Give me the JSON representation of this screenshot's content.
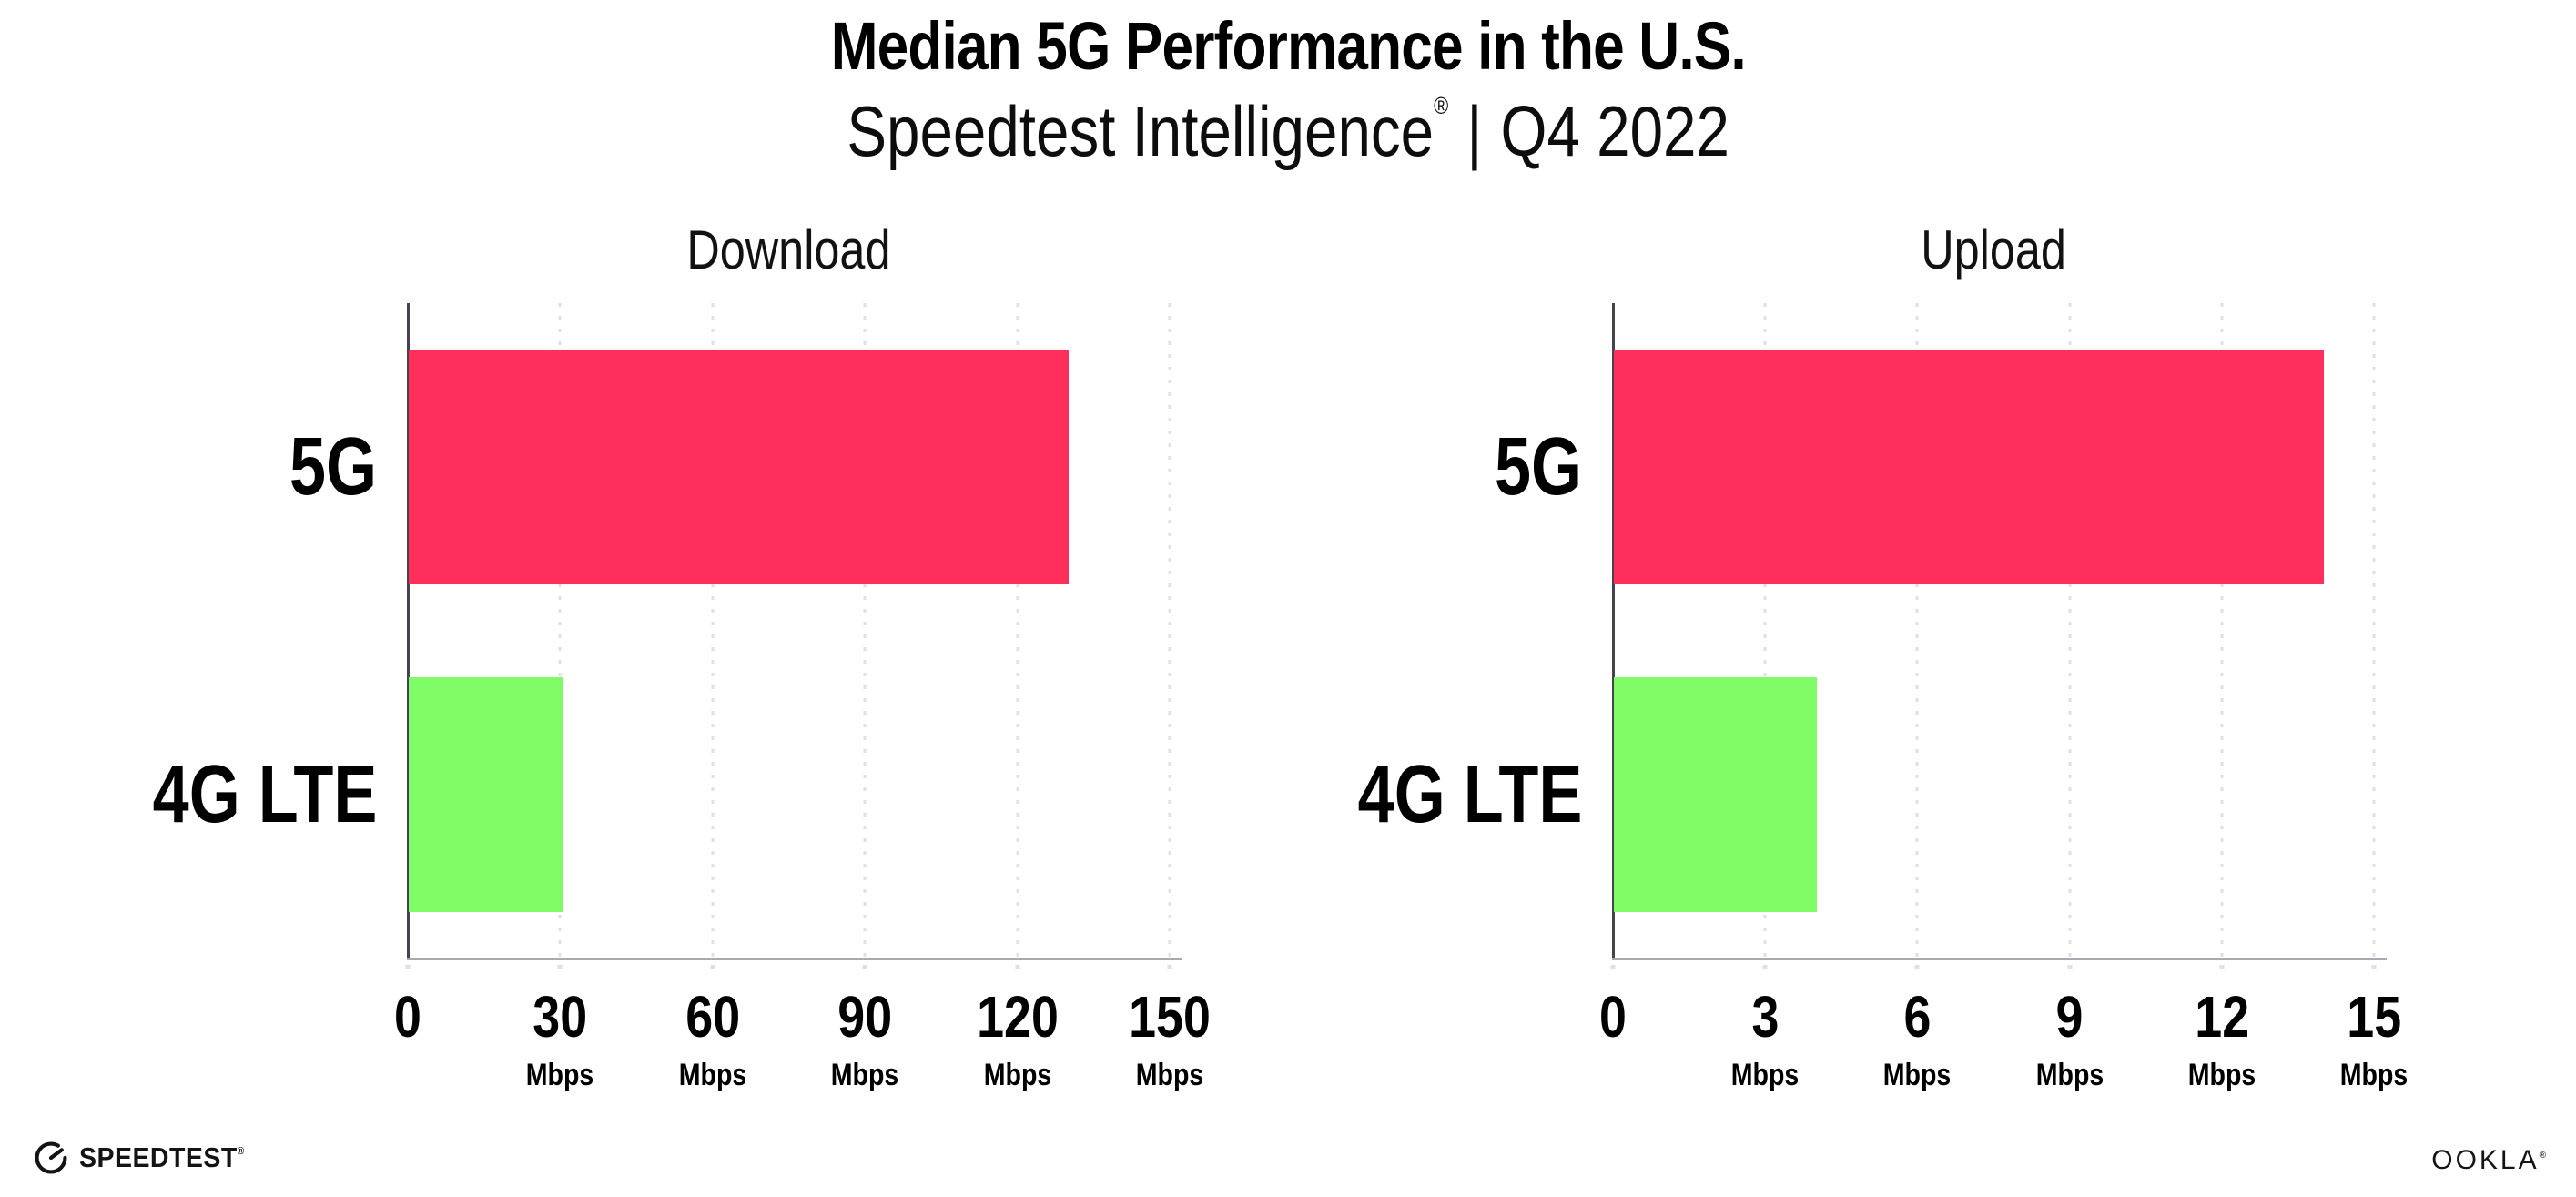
{
  "header": {
    "title": "Median 5G Performance in the U.S.",
    "subtitle_brand": "Speedtest Intelligence",
    "subtitle_reg": "®",
    "subtitle_divider": "|",
    "subtitle_period": "Q4 2022"
  },
  "chart_data": [
    {
      "type": "bar",
      "orientation": "horizontal",
      "title": "Download",
      "categories": [
        "5G",
        "4G LTE"
      ],
      "values": [
        130,
        30.5
      ],
      "unit": "Mbps",
      "xlim": [
        0,
        150
      ],
      "ticks": [
        0,
        30,
        60,
        90,
        120,
        150
      ],
      "grid": "dotted-vertical",
      "legend": "none",
      "bar_colors": [
        "#ff2e5b",
        "#7ffc66"
      ]
    },
    {
      "type": "bar",
      "orientation": "horizontal",
      "title": "Upload",
      "categories": [
        "5G",
        "4G LTE"
      ],
      "values": [
        14,
        4
      ],
      "unit": "Mbps",
      "xlim": [
        0,
        15
      ],
      "ticks": [
        0,
        3,
        6,
        9,
        12,
        15
      ],
      "grid": "dotted-vertical",
      "legend": "none",
      "bar_colors": [
        "#ff2e5b",
        "#7ffc66"
      ]
    }
  ],
  "footer": {
    "speedtest_label": "SPEEDTEST",
    "speedtest_reg": "®",
    "ookla_label": "OOKLA",
    "ookla_reg": "®"
  },
  "colors": {
    "bar_5g": "#ff2e5b",
    "bar_4g_lte": "#7ffc66",
    "grid_dot": "#dfdfe8",
    "y_axis": "#45444c",
    "x_axis": "#a9a9af",
    "text": "#000000"
  }
}
